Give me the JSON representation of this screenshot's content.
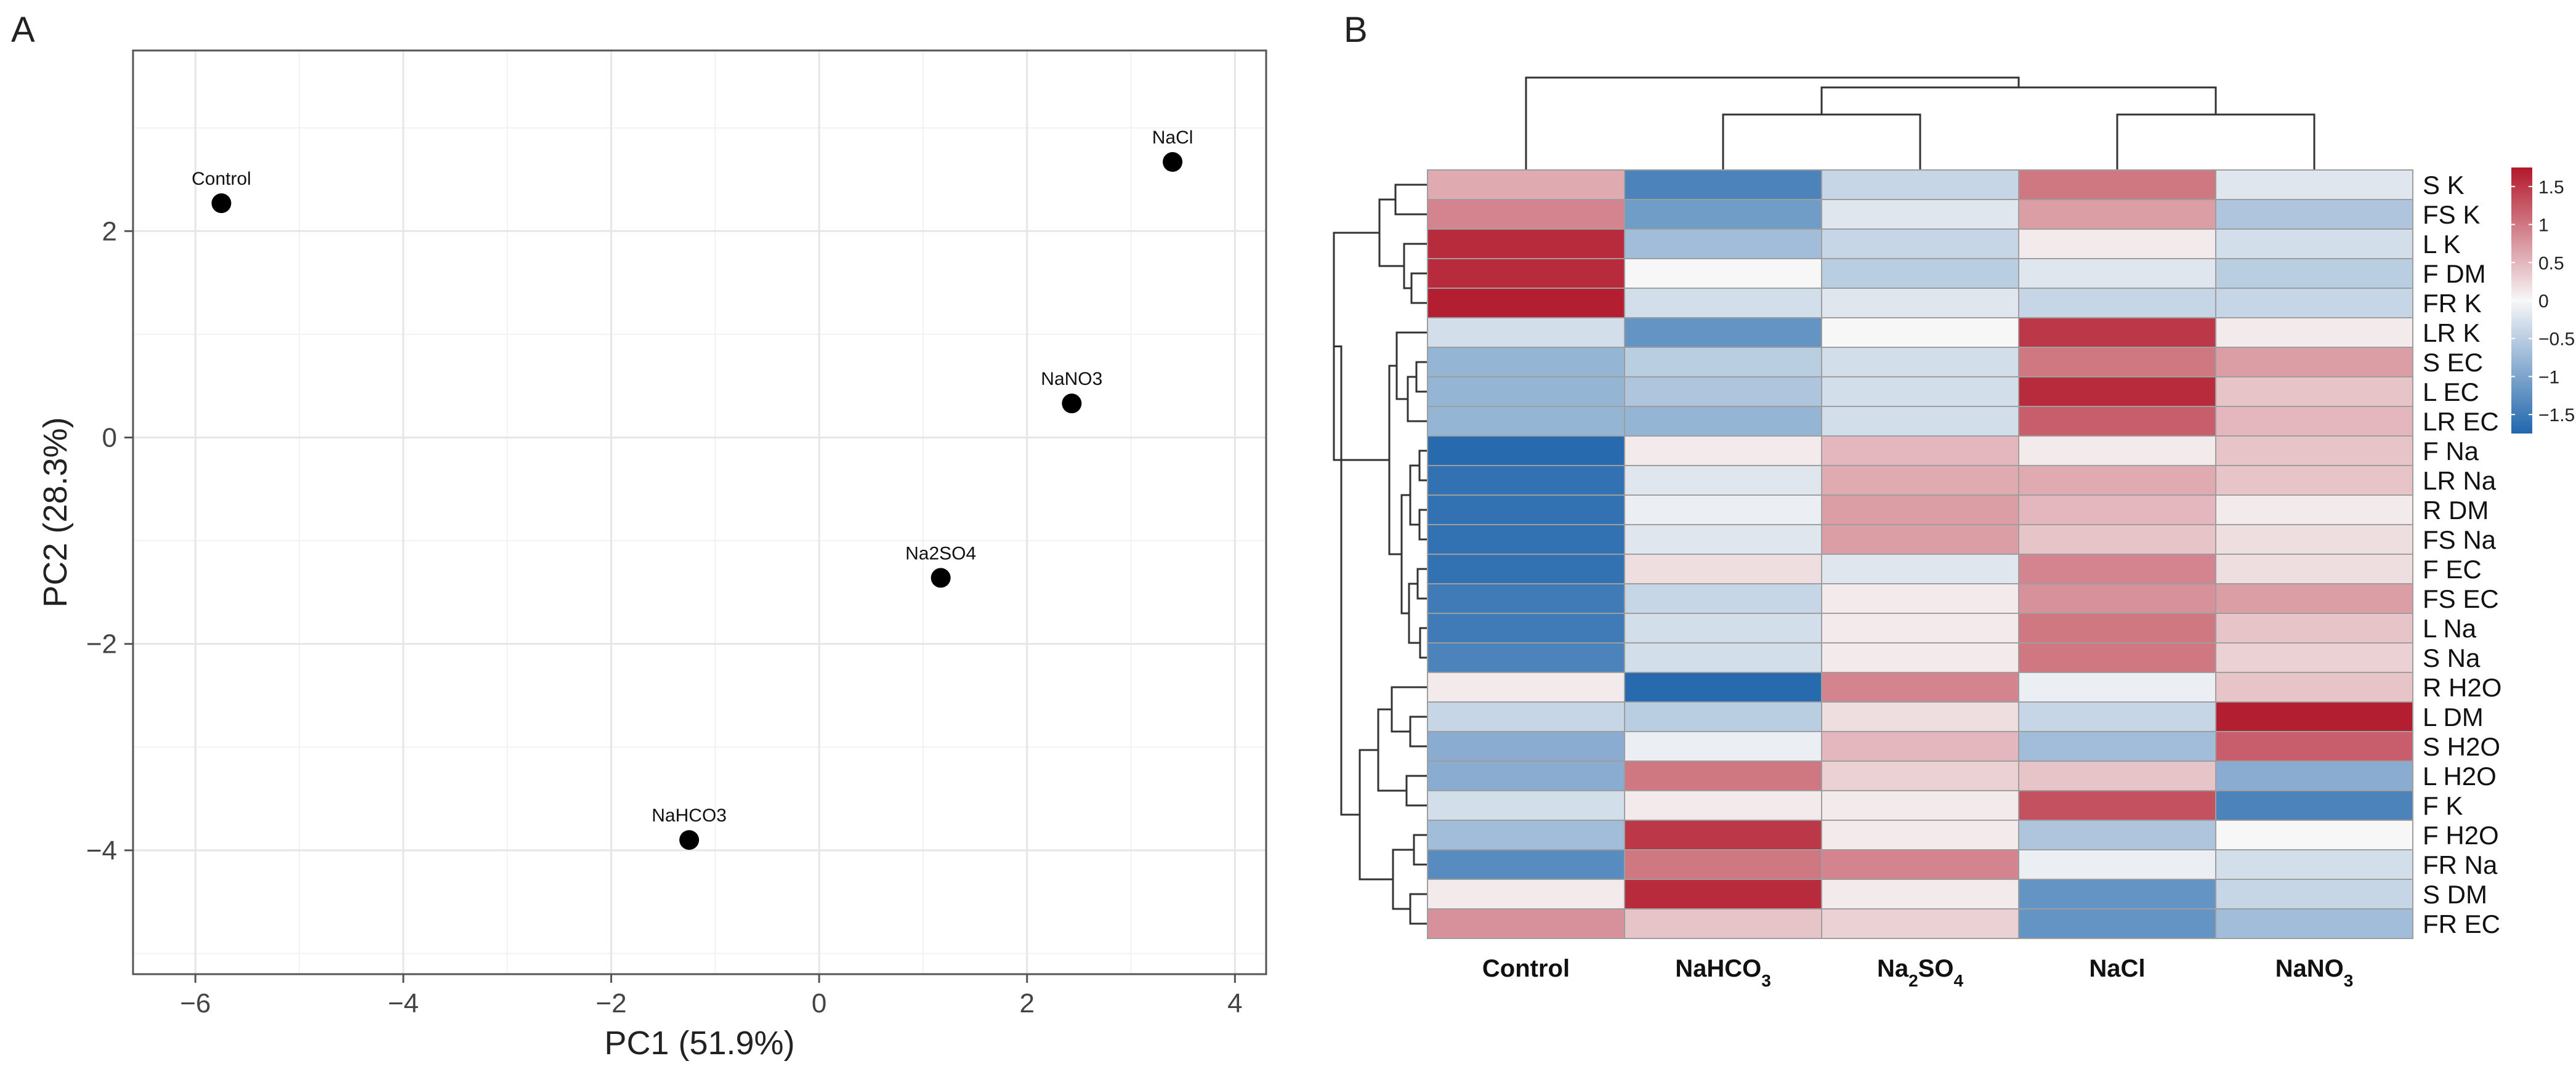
{
  "chart_data": [
    {
      "type": "scatter",
      "panel_label": "A",
      "title": "",
      "xlabel": "PC1 (51.9%)",
      "ylabel": "PC2 (28.3%)",
      "xlim": [
        -6.6,
        4.3
      ],
      "ylim": [
        -5.2,
        3.75
      ],
      "x_ticks": [
        -6,
        -4,
        -2,
        0,
        2,
        4
      ],
      "x_tick_labels": [
        "−6",
        "−4",
        "−2",
        "0",
        "2",
        "4"
      ],
      "y_ticks": [
        -4,
        -2,
        0,
        2
      ],
      "y_tick_labels": [
        "−4",
        "−2",
        "0",
        "2"
      ],
      "grid": true,
      "points": [
        {
          "label": "Control",
          "x": -5.75,
          "y": 2.27
        },
        {
          "label": "NaCl",
          "x": 3.4,
          "y": 2.67
        },
        {
          "label": "NaNO3",
          "x": 2.43,
          "y": 0.33
        },
        {
          "label": "Na2SO4",
          "x": 1.17,
          "y": -1.36
        },
        {
          "label": "NaHCO3",
          "x": -1.25,
          "y": -3.9
        }
      ]
    },
    {
      "type": "heatmap",
      "panel_label": "B",
      "columns": [
        "Control",
        "NaHCO3",
        "Na2SO4",
        "NaCl",
        "NaNO3"
      ],
      "rows": [
        "S K",
        "FS K",
        "L K",
        "F DM",
        "FR K",
        "LR K",
        "S EC",
        "L EC",
        "LR EC",
        "F Na",
        "LR Na",
        "R DM",
        "FS Na",
        "F EC",
        "FS EC",
        "L Na",
        "S Na",
        "R H2O",
        "L DM",
        "S H2O",
        "L H2O",
        "F K",
        "F H2O",
        "FR Na",
        "S DM",
        "FR EC"
      ],
      "values": [
        [
          0.6,
          -1.4,
          -0.4,
          1.0,
          -0.2
        ],
        [
          0.9,
          -1.1,
          -0.2,
          0.7,
          -0.6
        ],
        [
          1.6,
          -0.7,
          -0.4,
          0.1,
          -0.3
        ],
        [
          1.6,
          0.0,
          -0.5,
          -0.2,
          -0.5
        ],
        [
          1.7,
          -0.3,
          -0.2,
          -0.4,
          -0.4
        ],
        [
          -0.3,
          -1.2,
          0.0,
          1.5,
          0.1
        ],
        [
          -0.8,
          -0.5,
          -0.3,
          1.0,
          0.7
        ],
        [
          -0.8,
          -0.6,
          -0.3,
          1.6,
          0.4
        ],
        [
          -0.8,
          -0.8,
          -0.3,
          1.2,
          0.5
        ],
        [
          -1.7,
          0.1,
          0.5,
          0.1,
          0.4
        ],
        [
          -1.6,
          -0.2,
          0.6,
          0.6,
          0.4
        ],
        [
          -1.6,
          -0.1,
          0.7,
          0.5,
          0.1
        ],
        [
          -1.6,
          -0.2,
          0.7,
          0.4,
          0.2
        ],
        [
          -1.6,
          0.2,
          -0.2,
          0.9,
          0.2
        ],
        [
          -1.5,
          -0.4,
          0.1,
          0.8,
          0.7
        ],
        [
          -1.5,
          -0.3,
          0.1,
          1.0,
          0.4
        ],
        [
          -1.4,
          -0.3,
          0.1,
          1.0,
          0.3
        ],
        [
          0.1,
          -1.7,
          0.9,
          -0.1,
          0.4
        ],
        [
          -0.4,
          -0.5,
          0.2,
          -0.4,
          1.7
        ],
        [
          -0.9,
          -0.1,
          0.5,
          -0.7,
          1.2
        ],
        [
          -0.9,
          1.0,
          0.3,
          0.4,
          -0.9
        ],
        [
          -0.3,
          0.1,
          0.1,
          1.3,
          -1.4
        ],
        [
          -0.7,
          1.5,
          0.1,
          -0.6,
          0.0
        ],
        [
          -1.3,
          1.0,
          0.9,
          -0.1,
          -0.3
        ],
        [
          0.1,
          1.6,
          0.1,
          -1.2,
          -0.4
        ],
        [
          0.8,
          0.4,
          0.3,
          -1.2,
          -0.7
        ]
      ],
      "color_scale": {
        "min": -1.75,
        "max": 1.75,
        "low_color": "#2166ac",
        "mid_color": "#f7f7f7",
        "high_color": "#b2182b",
        "ticks": [
          -1.5,
          -1,
          -0.5,
          0,
          0.5,
          1,
          1.5
        ],
        "tick_labels": [
          "−1.5",
          "−1",
          "−0.5",
          "0",
          "0.5",
          "1",
          "1.5"
        ]
      },
      "grid_color": "#9e9e9e"
    }
  ]
}
